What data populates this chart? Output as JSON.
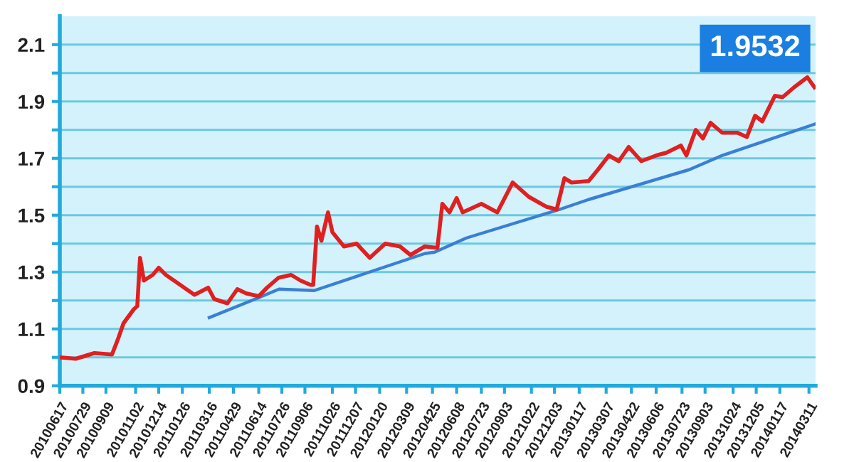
{
  "chart_data": {
    "type": "line",
    "annotations": [
      "1.9532"
    ],
    "xticks": [
      {
        "value": "2010-06-17",
        "label": "20100617"
      },
      {
        "value": "2010-07-29",
        "label": "20100729"
      },
      {
        "value": "2010-09-09",
        "label": "20100909"
      },
      {
        "value": "2010-11-02",
        "label": "20101102"
      },
      {
        "value": "2010-12-14",
        "label": "20101214"
      },
      {
        "value": "2011-01-26",
        "label": "20110126"
      },
      {
        "value": "2011-03-16",
        "label": "20110316"
      },
      {
        "value": "2011-04-29",
        "label": "20110429"
      },
      {
        "value": "2011-06-14",
        "label": "20110614"
      },
      {
        "value": "2011-07-26",
        "label": "20110726"
      },
      {
        "value": "2011-09-06",
        "label": "20110906"
      },
      {
        "value": "2011-10-26",
        "label": "20111026"
      },
      {
        "value": "2011-12-07",
        "label": "20111207"
      },
      {
        "value": "2012-01-20",
        "label": "20120120"
      },
      {
        "value": "2012-03-09",
        "label": "20120309"
      },
      {
        "value": "2012-04-25",
        "label": "20120425"
      },
      {
        "value": "2012-06-08",
        "label": "20120608"
      },
      {
        "value": "2012-07-23",
        "label": "20120723"
      },
      {
        "value": "2012-09-03",
        "label": "20120903"
      },
      {
        "value": "2012-10-22",
        "label": "20121022"
      },
      {
        "value": "2012-12-03",
        "label": "20121203"
      },
      {
        "value": "2013-01-17",
        "label": "20130117"
      },
      {
        "value": "2013-03-07",
        "label": "20130307"
      },
      {
        "value": "2013-04-22",
        "label": "20130422"
      },
      {
        "value": "2013-06-06",
        "label": "20130606"
      },
      {
        "value": "2013-07-23",
        "label": "20130723"
      },
      {
        "value": "2013-09-03",
        "label": "20130903"
      },
      {
        "value": "2013-10-24",
        "label": "20131024"
      },
      {
        "value": "2013-12-05",
        "label": "20131205"
      },
      {
        "value": "2014-01-17",
        "label": "20140117"
      },
      {
        "value": "2014-03-11",
        "label": "20140311"
      }
    ],
    "xlim": [
      "2010-06-17",
      "2014-03-23"
    ],
    "ylim": [
      0.9,
      2.2
    ],
    "yticks": [
      0.9,
      {
        "value": 1.0,
        "label": null
      },
      1.1,
      {
        "value": 1.2,
        "label": null
      },
      1.3,
      {
        "value": 1.4,
        "label": null
      },
      1.5,
      {
        "value": 1.6,
        "label": null
      },
      1.7,
      {
        "value": 1.8,
        "label": null
      },
      1.9,
      {
        "value": 2.0,
        "label": null
      },
      2.1
    ],
    "grid": "y",
    "marker": "none",
    "line_style": "solid",
    "series": [
      {
        "color": "#e02020",
        "x": [
          "2010-06-17",
          "2010-07-16",
          "2010-08-19",
          "2010-09-20",
          "2010-10-01",
          "2010-10-11",
          "2010-10-30",
          "2010-11-05",
          "2010-11-10",
          "2010-11-17",
          "2010-12-03",
          "2010-12-14",
          "2010-12-27",
          "2011-01-22",
          "2011-02-17",
          "2011-03-14",
          "2011-03-25",
          "2011-04-18",
          "2011-05-06",
          "2011-05-22",
          "2011-06-14",
          "2011-06-29",
          "2011-07-20",
          "2011-08-12",
          "2011-08-29",
          "2011-09-16",
          "2011-09-21",
          "2011-09-28",
          "2011-10-06",
          "2011-10-18",
          "2011-10-26",
          "2011-11-16",
          "2011-12-09",
          "2012-01-02",
          "2012-01-30",
          "2012-02-26",
          "2012-03-16",
          "2012-04-11",
          "2012-05-04",
          "2012-05-13",
          "2012-05-26",
          "2012-06-08",
          "2012-06-19",
          "2012-07-23",
          "2012-08-21",
          "2012-09-18",
          "2012-10-17",
          "2012-11-18",
          "2012-12-07",
          "2012-12-21",
          "2013-01-03",
          "2013-02-03",
          "2013-02-20",
          "2013-03-12",
          "2013-03-30",
          "2013-04-17",
          "2013-05-10",
          "2013-06-06",
          "2013-06-25",
          "2013-07-21",
          "2013-07-31",
          "2013-08-17",
          "2013-08-30",
          "2013-09-13",
          "2013-10-04",
          "2013-11-01",
          "2013-11-18",
          "2013-12-03",
          "2013-12-16",
          "2014-01-08",
          "2014-01-22",
          "2014-02-12",
          "2014-03-08",
          "2014-03-21"
        ],
        "values": [
          1.0,
          0.995,
          1.015,
          1.01,
          1.065,
          1.12,
          1.17,
          1.18,
          1.35,
          1.27,
          1.29,
          1.315,
          1.29,
          1.255,
          1.22,
          1.245,
          1.205,
          1.19,
          1.24,
          1.225,
          1.215,
          1.245,
          1.28,
          1.29,
          1.27,
          1.255,
          1.255,
          1.46,
          1.41,
          1.51,
          1.44,
          1.39,
          1.4,
          1.35,
          1.4,
          1.39,
          1.36,
          1.39,
          1.385,
          1.54,
          1.51,
          1.56,
          1.51,
          1.54,
          1.51,
          1.615,
          1.565,
          1.53,
          1.52,
          1.63,
          1.615,
          1.62,
          1.66,
          1.71,
          1.69,
          1.74,
          1.69,
          1.71,
          1.72,
          1.745,
          1.71,
          1.8,
          1.77,
          1.825,
          1.79,
          1.79,
          1.775,
          1.85,
          1.83,
          1.92,
          1.915,
          1.95,
          1.985,
          1.95
        ]
      },
      {
        "color": "#3a7fd5",
        "x": [
          "2011-03-16",
          "2011-06-14",
          "2011-07-21",
          "2011-09-23",
          "2012-04-11",
          "2012-04-29",
          "2012-06-26",
          "2012-12-12",
          "2013-02-03",
          "2013-08-05",
          "2013-10-04",
          "2014-03-21"
        ],
        "values": [
          1.14,
          1.21,
          1.24,
          1.235,
          1.365,
          1.37,
          1.42,
          1.52,
          1.555,
          1.66,
          1.71,
          1.82
        ]
      }
    ]
  }
}
